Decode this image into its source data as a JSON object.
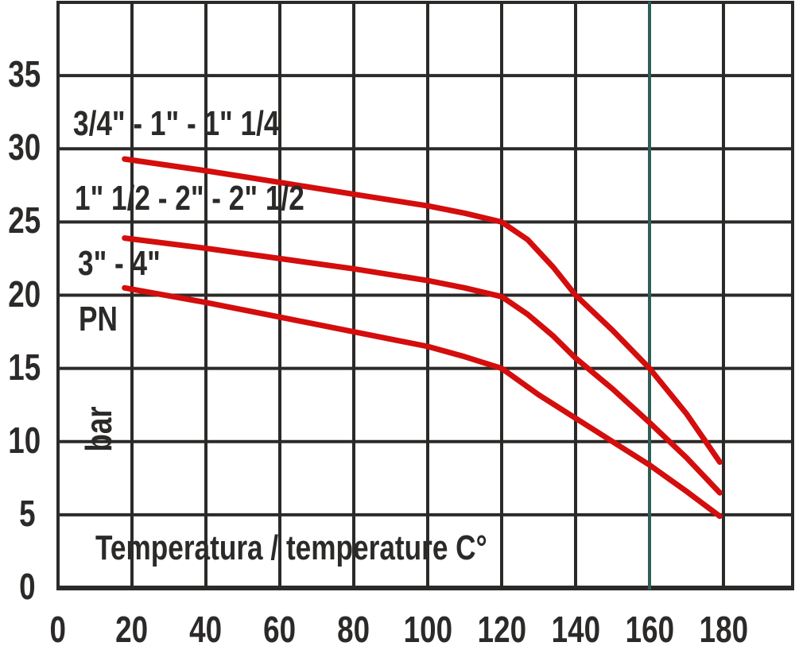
{
  "colors": {
    "background": "#ffffff",
    "grid": "#2b2a29",
    "text": "#2b2a29",
    "curve_red": "#d40d0d",
    "highlight_gridline_teal": "#2e5f55"
  },
  "chart_data": {
    "type": "line",
    "title": "",
    "xlabel": "Temperatura / temperature C°",
    "ylabel_pn": "PN",
    "ylabel_unit": "bar",
    "x_unit": "°C",
    "y_unit": "bar",
    "xlim": [
      0,
      199
    ],
    "ylim": [
      0,
      40
    ],
    "grid": true,
    "x_ticks": [
      0,
      20,
      40,
      60,
      80,
      100,
      120,
      140,
      160,
      180
    ],
    "y_ticks": [
      0,
      5,
      10,
      15,
      20,
      25,
      30,
      35
    ],
    "highlight_x_gridline": 160,
    "series": [
      {
        "name": "3/4\" - 1\" - 1\" 1/4",
        "points": [
          [
            18,
            29.3
          ],
          [
            40,
            28.5
          ],
          [
            60,
            27.7
          ],
          [
            80,
            26.9
          ],
          [
            100,
            26.1
          ],
          [
            110,
            25.6
          ],
          [
            120,
            25.0
          ],
          [
            127,
            23.8
          ],
          [
            134,
            21.9
          ],
          [
            140,
            20.0
          ],
          [
            150,
            17.6
          ],
          [
            160,
            15.0
          ],
          [
            170,
            11.9
          ],
          [
            179,
            8.6
          ]
        ]
      },
      {
        "name": "1\" 1/2 - 2\" - 2\" 1/2",
        "points": [
          [
            18,
            23.9
          ],
          [
            40,
            23.2
          ],
          [
            60,
            22.5
          ],
          [
            80,
            21.8
          ],
          [
            100,
            21.0
          ],
          [
            110,
            20.5
          ],
          [
            120,
            19.9
          ],
          [
            127,
            18.7
          ],
          [
            134,
            17.2
          ],
          [
            140,
            15.7
          ],
          [
            150,
            13.6
          ],
          [
            160,
            11.3
          ],
          [
            170,
            8.9
          ],
          [
            179,
            6.5
          ]
        ]
      },
      {
        "name": "3\" - 4\"",
        "points": [
          [
            18,
            20.5
          ],
          [
            40,
            19.5
          ],
          [
            60,
            18.5
          ],
          [
            80,
            17.5
          ],
          [
            100,
            16.5
          ],
          [
            110,
            15.8
          ],
          [
            120,
            15.0
          ],
          [
            130,
            13.2
          ],
          [
            140,
            11.6
          ],
          [
            150,
            10.0
          ],
          [
            160,
            8.4
          ],
          [
            170,
            6.6
          ],
          [
            179,
            4.9
          ]
        ]
      }
    ]
  }
}
